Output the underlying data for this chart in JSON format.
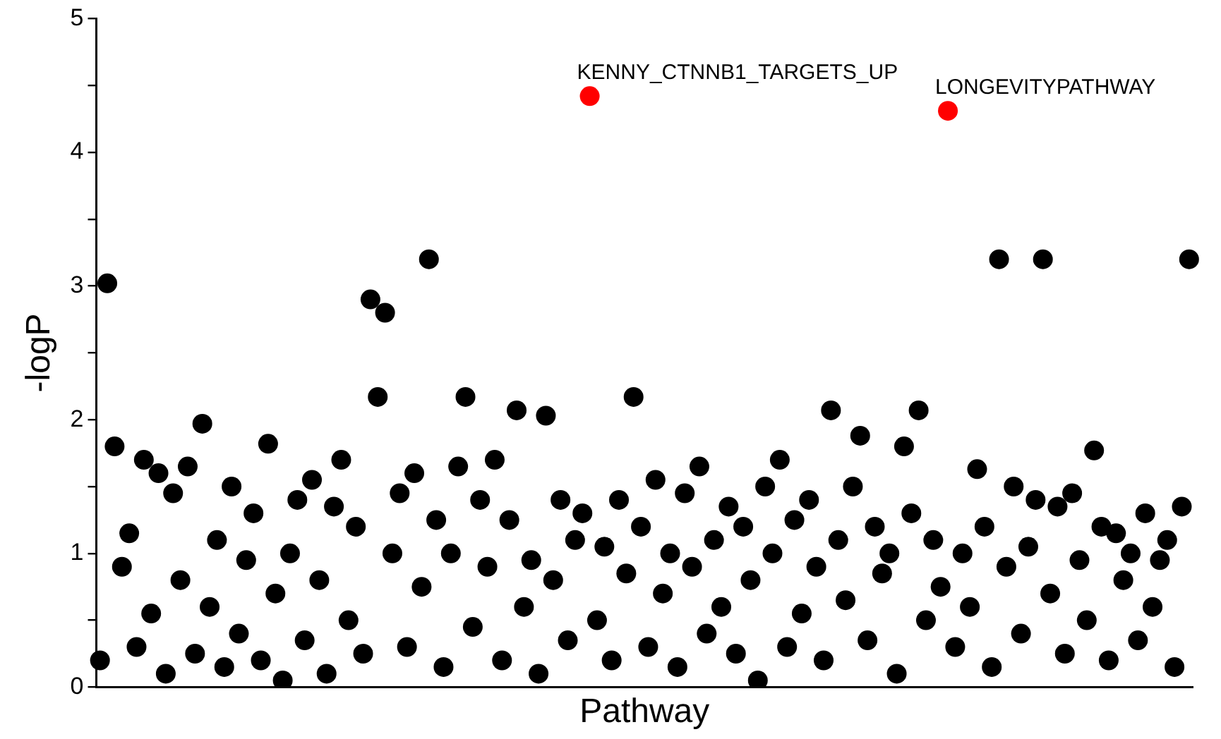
{
  "chart_data": {
    "type": "scatter",
    "xlabel": "Pathway",
    "ylabel": "-logP",
    "categories": [
      null,
      null,
      null,
      null,
      null,
      null,
      null,
      null,
      null,
      null,
      null,
      null,
      null,
      null,
      null,
      null,
      null,
      null,
      null,
      null,
      null,
      null,
      null,
      null,
      null,
      null,
      null,
      null,
      null,
      null,
      null,
      null,
      null,
      null,
      null,
      null,
      null,
      null,
      null,
      null,
      null,
      null,
      null,
      null,
      null,
      null,
      null,
      null,
      null,
      null,
      null,
      null,
      null,
      null,
      null,
      null,
      null,
      null,
      null,
      null,
      null,
      null,
      null,
      null,
      null,
      null,
      null,
      null,
      null,
      null,
      null,
      null,
      null,
      null,
      null,
      null,
      null,
      null,
      null,
      null,
      null,
      null,
      null,
      null,
      null,
      null,
      null,
      null,
      null,
      null,
      null,
      null,
      null,
      null,
      null,
      null,
      null,
      null,
      null,
      null,
      null,
      null,
      null,
      null,
      null,
      null,
      null,
      null,
      null,
      null,
      null,
      null,
      null,
      null,
      null,
      null,
      null,
      null,
      null,
      null,
      null,
      null,
      null,
      null,
      null,
      null,
      null,
      null,
      null,
      null,
      null,
      null,
      null,
      null,
      null,
      null,
      null,
      null,
      null,
      null,
      null,
      null,
      null,
      null,
      null,
      null,
      null,
      null,
      null,
      null
    ],
    "values": [
      0.2,
      3.02,
      1.8,
      0.9,
      1.15,
      0.3,
      1.7,
      0.55,
      1.6,
      0.1,
      1.45,
      0.8,
      1.65,
      0.25,
      1.97,
      0.6,
      1.1,
      0.15,
      1.5,
      0.4,
      0.95,
      1.3,
      0.2,
      1.82,
      0.7,
      0.05,
      1.0,
      1.4,
      0.35,
      1.55,
      0.8,
      0.1,
      1.35,
      1.7,
      0.5,
      1.2,
      0.25,
      2.9,
      2.17,
      2.8,
      1.0,
      1.45,
      0.3,
      1.6,
      0.75,
      3.2,
      1.25,
      0.15,
      1.0,
      1.65,
      2.17,
      0.45,
      1.4,
      0.9,
      1.7,
      0.2,
      1.25,
      2.07,
      0.6,
      0.95,
      0.1,
      2.03,
      0.8,
      1.4,
      0.35,
      1.1,
      1.3,
      4.42,
      0.5,
      1.05,
      0.2,
      1.4,
      0.85,
      2.17,
      1.2,
      0.3,
      1.55,
      0.7,
      1.0,
      0.15,
      1.45,
      0.9,
      1.65,
      0.4,
      1.1,
      0.6,
      1.35,
      0.25,
      1.2,
      0.8,
      0.05,
      1.5,
      1.0,
      1.7,
      0.3,
      1.25,
      0.55,
      1.4,
      0.9,
      0.2,
      2.07,
      1.1,
      0.65,
      1.5,
      1.88,
      0.35,
      1.2,
      0.85,
      1.0,
      0.1,
      1.8,
      1.3,
      2.07,
      0.5,
      1.1,
      0.75,
      4.31,
      0.3,
      1.0,
      0.6,
      1.63,
      1.2,
      0.15,
      3.2,
      0.9,
      1.5,
      0.4,
      1.05,
      1.4,
      3.2,
      0.7,
      1.35,
      0.25,
      1.45,
      0.95,
      0.5,
      1.77,
      1.2,
      0.2,
      1.15,
      0.8,
      1.0,
      0.35,
      1.3,
      0.6,
      0.95,
      1.1,
      0.15,
      1.35,
      3.2
    ],
    "colors": [
      "#000000",
      "#000000",
      "#000000",
      "#000000",
      "#000000",
      "#000000",
      "#000000",
      "#000000",
      "#000000",
      "#000000",
      "#000000",
      "#000000",
      "#000000",
      "#000000",
      "#000000",
      "#000000",
      "#000000",
      "#000000",
      "#000000",
      "#000000",
      "#000000",
      "#000000",
      "#000000",
      "#000000",
      "#000000",
      "#000000",
      "#000000",
      "#000000",
      "#000000",
      "#000000",
      "#000000",
      "#000000",
      "#000000",
      "#000000",
      "#000000",
      "#000000",
      "#000000",
      "#000000",
      "#000000",
      "#000000",
      "#000000",
      "#000000",
      "#000000",
      "#000000",
      "#000000",
      "#000000",
      "#000000",
      "#000000",
      "#000000",
      "#000000",
      "#000000",
      "#000000",
      "#000000",
      "#000000",
      "#000000",
      "#000000",
      "#000000",
      "#000000",
      "#000000",
      "#000000",
      "#000000",
      "#000000",
      "#000000",
      "#000000",
      "#000000",
      "#000000",
      "#000000",
      "#ff0000",
      "#000000",
      "#000000",
      "#000000",
      "#000000",
      "#000000",
      "#000000",
      "#000000",
      "#000000",
      "#000000",
      "#000000",
      "#000000",
      "#000000",
      "#000000",
      "#000000",
      "#000000",
      "#000000",
      "#000000",
      "#000000",
      "#000000",
      "#000000",
      "#000000",
      "#000000",
      "#000000",
      "#000000",
      "#000000",
      "#000000",
      "#000000",
      "#000000",
      "#000000",
      "#000000",
      "#000000",
      "#000000",
      "#000000",
      "#000000",
      "#000000",
      "#000000",
      "#000000",
      "#000000",
      "#000000",
      "#000000",
      "#000000",
      "#000000",
      "#000000",
      "#000000",
      "#000000",
      "#000000",
      "#000000",
      "#000000",
      "#ff0000",
      "#000000",
      "#000000",
      "#000000",
      "#000000",
      "#000000",
      "#000000",
      "#000000",
      "#000000",
      "#000000",
      "#000000",
      "#000000",
      "#000000",
      "#000000",
      "#000000",
      "#000000",
      "#000000",
      "#000000",
      "#000000",
      "#000000",
      "#000000",
      "#000000",
      "#000000",
      "#000000",
      "#000000",
      "#000000",
      "#000000",
      "#000000",
      "#000000",
      "#000000",
      "#000000",
      "#000000",
      "#000000",
      "#000000"
    ],
    "value_labels": [
      null,
      null,
      null,
      null,
      null,
      null,
      null,
      null,
      null,
      null,
      null,
      null,
      null,
      null,
      null,
      null,
      null,
      null,
      null,
      null,
      null,
      null,
      null,
      null,
      null,
      null,
      null,
      null,
      null,
      null,
      null,
      null,
      null,
      null,
      null,
      null,
      null,
      null,
      null,
      null,
      null,
      null,
      null,
      null,
      null,
      null,
      null,
      null,
      null,
      null,
      null,
      null,
      null,
      null,
      null,
      null,
      null,
      null,
      null,
      null,
      null,
      null,
      null,
      null,
      null,
      null,
      null,
      "KENNY_CTNNB1_TARGETS_UP",
      null,
      null,
      null,
      null,
      null,
      null,
      null,
      null,
      null,
      null,
      null,
      null,
      null,
      null,
      null,
      null,
      null,
      null,
      null,
      null,
      null,
      null,
      null,
      null,
      null,
      null,
      null,
      null,
      null,
      null,
      null,
      null,
      null,
      null,
      null,
      null,
      null,
      null,
      null,
      null,
      null,
      null,
      null,
      null,
      null,
      null,
      null,
      null,
      "LONGEVITYPATHWAY",
      null,
      null,
      null,
      null,
      null,
      null,
      null,
      null,
      null,
      null,
      null,
      null,
      null,
      null,
      null,
      null,
      null,
      null,
      null,
      null,
      null,
      null,
      null,
      null,
      null,
      null,
      null,
      null,
      null,
      null,
      null,
      null,
      null
    ],
    "ylim": [
      0,
      5
    ],
    "yticks": [
      0,
      {
        "value": 0.5,
        "label": null
      },
      1,
      {
        "value": 1.5,
        "label": null
      },
      2,
      {
        "value": 2.5,
        "label": null
      },
      3,
      {
        "value": 3.5,
        "label": null
      },
      4,
      {
        "value": 4.5,
        "label": null
      },
      5
    ],
    "tick_labels": "y",
    "marker": "circle",
    "grid": false,
    "legend": false
  }
}
